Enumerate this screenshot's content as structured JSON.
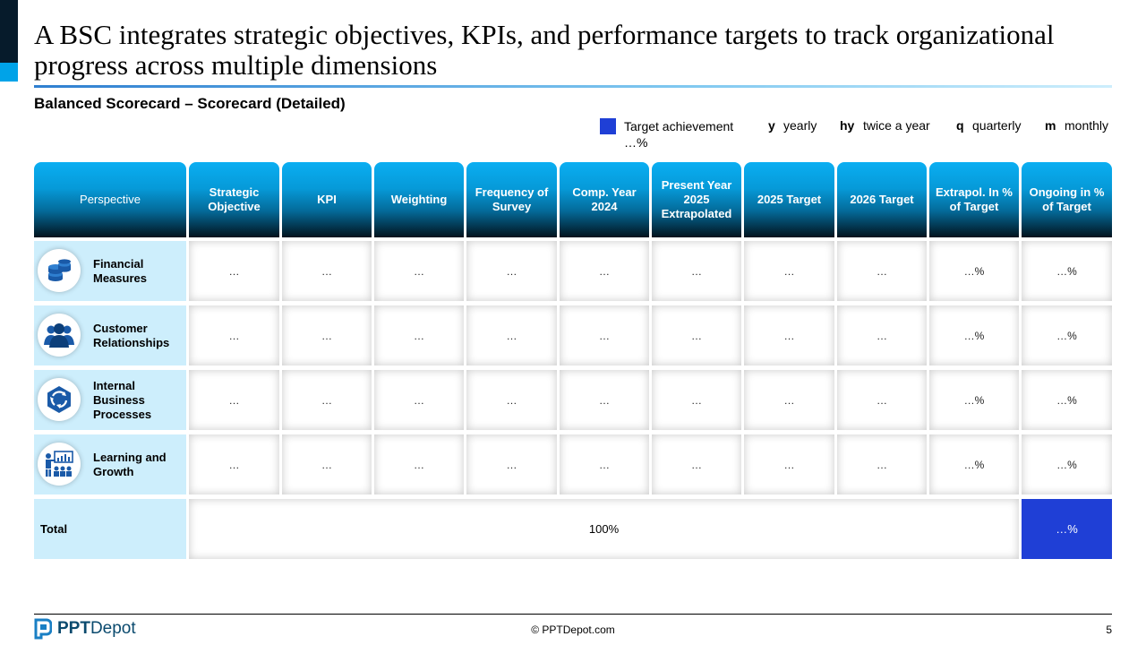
{
  "title": "A BSC integrates strategic objectives, KPIs, and performance targets to track organizational progress across multiple dimensions",
  "subtitle": "Balanced Scorecard – Scorecard (Detailed)",
  "legend": {
    "achievement_color": "#1f3fd6",
    "achievement_label": "Target achievement …%",
    "yearly_key": "y",
    "yearly_label": "yearly",
    "twice_key": "hy",
    "twice_label": "twice a year",
    "quarterly_key": "q",
    "quarterly_label": "quarterly",
    "monthly_key": "m",
    "monthly_label": "monthly"
  },
  "table": {
    "headers": [
      "Perspective",
      "Strategic Objective",
      "KPI",
      "Weighting",
      "Frequency of Survey",
      "Comp. Year 2024",
      "Present Year 2025 Extrapolated",
      "2025 Target",
      "2026 Target",
      "Extrapol. In % of Target",
      "Ongoing in % of Target"
    ],
    "rows": [
      {
        "perspective": "Financial Measures",
        "icon": "coins-stack-icon",
        "cells": [
          "…",
          "…",
          "…",
          "…",
          "…",
          "…",
          "…",
          "…",
          "…%",
          "…%"
        ]
      },
      {
        "perspective": "Customer Relationships",
        "icon": "customers-group-icon",
        "cells": [
          "…",
          "…",
          "…",
          "…",
          "…",
          "…",
          "…",
          "…",
          "…%",
          "…%"
        ]
      },
      {
        "perspective": "Internal Business Processes",
        "icon": "process-cycle-icon",
        "cells": [
          "…",
          "…",
          "…",
          "…",
          "…",
          "…",
          "…",
          "…",
          "…%",
          "…%"
        ]
      },
      {
        "perspective": "Learning and Growth",
        "icon": "presentation-audience-icon",
        "cells": [
          "…",
          "…",
          "…",
          "…",
          "…",
          "…",
          "…",
          "…",
          "…%",
          "…%"
        ]
      }
    ],
    "total": {
      "label": "Total",
      "weighting": "100%",
      "ongoing": "…%"
    }
  },
  "footer": {
    "copyright": "© PPTDepot.com",
    "page": "5",
    "logo_bold": "PPT",
    "logo_rest": "Depot"
  }
}
